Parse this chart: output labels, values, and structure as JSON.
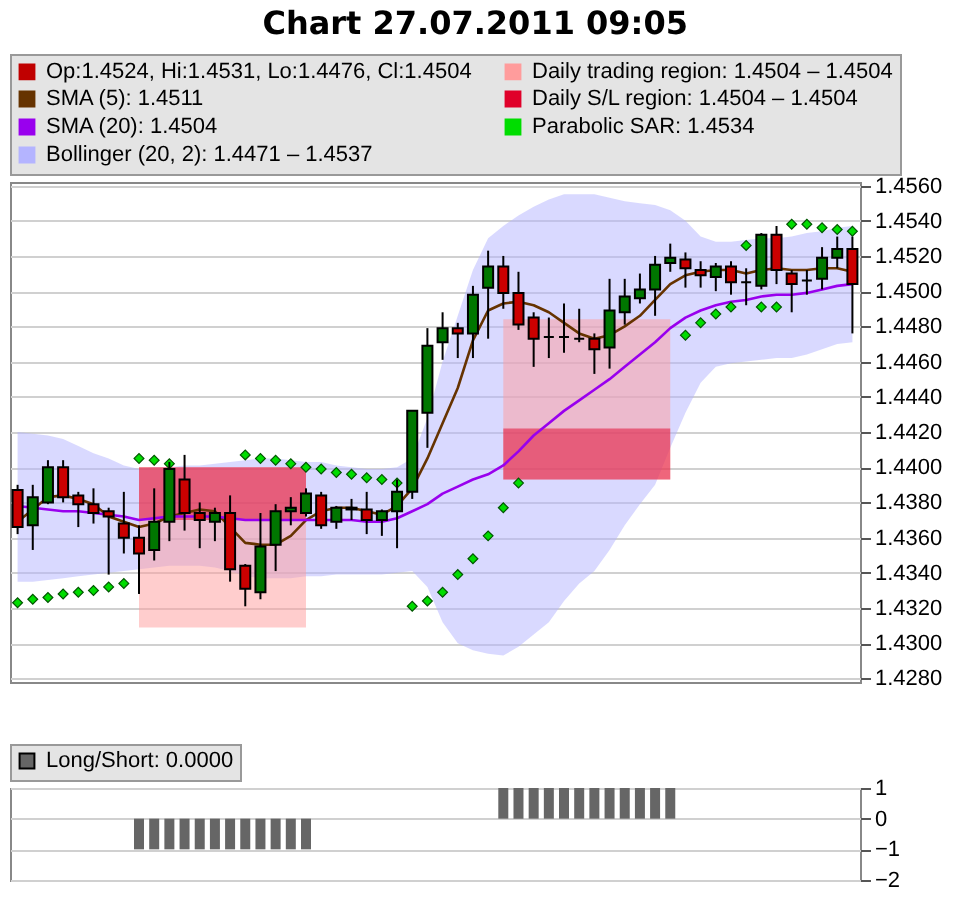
{
  "chart_data": [
    {
      "type": "candlestick",
      "title": "Chart 27.07.2011 09:05",
      "categories": [
        null,
        null,
        null,
        null,
        null,
        null,
        null,
        null,
        null,
        null,
        null,
        null,
        null,
        null,
        null,
        null,
        null,
        null,
        null,
        null,
        null,
        null,
        null,
        null,
        null,
        null,
        null,
        null,
        null,
        null,
        null,
        null,
        null,
        null,
        null,
        null,
        null,
        null,
        null,
        null,
        null,
        null,
        null,
        null,
        null,
        null,
        null,
        null,
        null,
        null,
        null,
        null,
        null,
        null,
        null,
        null
      ],
      "ylim": [
        1.4278,
        1.4562
      ],
      "yticks": [
        {
          "value": 1.428,
          "label": "1.4280"
        },
        {
          "value": 1.43,
          "label": "1.4300"
        },
        {
          "value": 1.432,
          "label": "1.4320"
        },
        {
          "value": 1.434,
          "label": "1.4340"
        },
        {
          "value": 1.436,
          "label": "1.4360"
        },
        {
          "value": 1.438,
          "label": "1.4380"
        },
        {
          "value": 1.44,
          "label": "1.4400"
        },
        {
          "value": 1.442,
          "label": "1.4420"
        },
        {
          "value": 1.444,
          "label": "1.4440"
        },
        {
          "value": 1.446,
          "label": "1.4460"
        },
        {
          "value": 1.448,
          "label": "1.4480"
        },
        {
          "value": 1.45,
          "label": "1.4500"
        },
        {
          "value": 1.452,
          "label": "1.4520"
        },
        {
          "value": 1.454,
          "label": "1.4540"
        },
        {
          "value": 1.456,
          "label": "1.4560"
        }
      ],
      "grid": "y",
      "legend": "top",
      "tick_labels": "y",
      "series": [
        {
          "type": "candlestick",
          "name": "Op:1.4524, Hi:1.4531, Lo:1.4476, Cl:1.4504",
          "color": "#c00000",
          "colors": [
            "#cc0000",
            "#007700",
            "#007700",
            "#cc0000",
            "#cc0000",
            "#cc0000",
            "#cc0000",
            "#cc0000",
            "#cc0000",
            "#007700",
            "#007700",
            "#cc0000",
            "#cc0000",
            "#007700",
            "#cc0000",
            "#cc0000",
            "#007700",
            "#007700",
            "#007700",
            "#007700",
            "#cc0000",
            "#007700",
            "#cc0000",
            "#cc0000",
            "#007700",
            "#007700",
            "#007700",
            "#007700",
            "#007700",
            "#cc0000",
            "#007700",
            "#007700",
            "#cc0000",
            "#cc0000",
            "#cc0000",
            "#000000",
            "#000000",
            "#000000",
            "#cc0000",
            "#007700",
            "#007700",
            "#007700",
            "#007700",
            "#007700",
            "#cc0000",
            "#cc0000",
            "#007700",
            "#cc0000",
            "#000000",
            "#007700",
            "#cc0000",
            "#cc0000",
            "#000000",
            "#007700",
            "#007700",
            "#cc0000"
          ],
          "ohlc": [
            [
              1.4387,
              1.439,
              1.4362,
              1.4366
            ],
            [
              1.4367,
              1.439,
              1.4353,
              1.4383
            ],
            [
              1.438,
              1.4404,
              1.4379,
              1.44
            ],
            [
              1.44,
              1.4404,
              1.438,
              1.4383
            ],
            [
              1.4384,
              1.4386,
              1.4366,
              1.4379
            ],
            [
              1.4379,
              1.4388,
              1.4368,
              1.4374
            ],
            [
              1.4375,
              1.4377,
              1.4339,
              1.4372
            ],
            [
              1.4368,
              1.4386,
              1.4351,
              1.436
            ],
            [
              1.436,
              1.4367,
              1.4328,
              1.4351
            ],
            [
              1.4353,
              1.4388,
              1.4347,
              1.4369
            ],
            [
              1.4369,
              1.4403,
              1.4358,
              1.4399
            ],
            [
              1.4393,
              1.4407,
              1.4364,
              1.4374
            ],
            [
              1.4374,
              1.438,
              1.4354,
              1.437
            ],
            [
              1.4369,
              1.4377,
              1.4358,
              1.4374
            ],
            [
              1.4374,
              1.4384,
              1.4335,
              1.4342
            ],
            [
              1.4344,
              1.4345,
              1.4321,
              1.4331
            ],
            [
              1.4329,
              1.4374,
              1.4325,
              1.4355
            ],
            [
              1.4356,
              1.4379,
              1.4341,
              1.4375
            ],
            [
              1.4375,
              1.4383,
              1.4367,
              1.4377
            ],
            [
              1.4374,
              1.4388,
              1.4372,
              1.4385
            ],
            [
              1.4384,
              1.4386,
              1.4365,
              1.4367
            ],
            [
              1.4369,
              1.4378,
              1.4365,
              1.4377
            ],
            [
              1.4377,
              1.4382,
              1.437,
              1.4376
            ],
            [
              1.4376,
              1.4386,
              1.4362,
              1.437
            ],
            [
              1.437,
              1.4376,
              1.4361,
              1.4375
            ],
            [
              1.4375,
              1.4393,
              1.4354,
              1.4386
            ],
            [
              1.4386,
              1.4432,
              1.4382,
              1.4432
            ],
            [
              1.4431,
              1.4479,
              1.4411,
              1.4469
            ],
            [
              1.4471,
              1.4488,
              1.4461,
              1.4479
            ],
            [
              1.4479,
              1.4482,
              1.4462,
              1.4476
            ],
            [
              1.4476,
              1.4503,
              1.4462,
              1.4498
            ],
            [
              1.4502,
              1.4523,
              1.4473,
              1.4514
            ],
            [
              1.4514,
              1.452,
              1.449,
              1.4499
            ],
            [
              1.4499,
              1.4511,
              1.4478,
              1.4481
            ],
            [
              1.4485,
              1.4488,
              1.4457,
              1.4473
            ],
            [
              1.4474,
              1.4485,
              1.4462,
              1.4474
            ],
            [
              1.4474,
              1.4493,
              1.4465,
              1.4474
            ],
            [
              1.4473,
              1.449,
              1.4471,
              1.4473
            ],
            [
              1.4473,
              1.4476,
              1.4453,
              1.4467
            ],
            [
              1.4468,
              1.4507,
              1.4456,
              1.4489
            ],
            [
              1.4488,
              1.4507,
              1.4481,
              1.4497
            ],
            [
              1.4496,
              1.451,
              1.4493,
              1.4501
            ],
            [
              1.4501,
              1.452,
              1.4486,
              1.4515
            ],
            [
              1.4516,
              1.4527,
              1.4511,
              1.4519
            ],
            [
              1.4518,
              1.4522,
              1.4502,
              1.4513
            ],
            [
              1.4512,
              1.4517,
              1.4502,
              1.4509
            ],
            [
              1.4508,
              1.4516,
              1.45,
              1.4514
            ],
            [
              1.4514,
              1.4517,
              1.4498,
              1.4505
            ],
            [
              1.4505,
              1.4513,
              1.4492,
              1.4505
            ],
            [
              1.4503,
              1.4533,
              1.4501,
              1.4532
            ],
            [
              1.4532,
              1.4537,
              1.4504,
              1.4512
            ],
            [
              1.451,
              1.4512,
              1.4488,
              1.4504
            ],
            [
              1.4506,
              1.4512,
              1.4498,
              1.4506
            ],
            [
              1.4507,
              1.4525,
              1.4501,
              1.4519
            ],
            [
              1.4519,
              1.4531,
              1.4513,
              1.4524
            ],
            [
              1.4524,
              1.4531,
              1.4476,
              1.4504
            ]
          ]
        },
        {
          "type": "line",
          "name": "SMA (5): 1.4511",
          "color": "#663300",
          "values": [
            1.4369,
            1.4376,
            1.4383,
            1.4384,
            1.4382,
            1.4379,
            1.4372,
            1.4369,
            1.4366,
            1.4368,
            1.4372,
            1.4374,
            1.4376,
            1.4375,
            1.4366,
            1.4357,
            1.4356,
            1.4356,
            1.4361,
            1.437,
            1.4375,
            1.4377,
            1.4377,
            1.4375,
            1.4373,
            1.4378,
            1.4388,
            1.4405,
            1.4425,
            1.4445,
            1.4472,
            1.4489,
            1.4493,
            1.4494,
            1.4492,
            1.4488,
            1.4482,
            1.4476,
            1.4473,
            1.4475,
            1.448,
            1.4486,
            1.4495,
            1.4504,
            1.4509,
            1.4511,
            1.4512,
            1.4512,
            1.451,
            1.4512,
            1.4513,
            1.4512,
            1.4512,
            1.4513,
            1.4513,
            1.4511
          ]
        },
        {
          "type": "line",
          "name": "SMA (20): 1.4504",
          "color": "#9900ee",
          "values": [
            1.4378,
            1.4377,
            1.4376,
            1.4375,
            1.4375,
            1.4374,
            1.4373,
            1.4372,
            1.437,
            1.4371,
            1.4372,
            1.4372,
            1.4372,
            1.4372,
            1.4371,
            1.437,
            1.437,
            1.437,
            1.437,
            1.437,
            1.437,
            1.437,
            1.437,
            1.4369,
            1.4369,
            1.4371,
            1.4375,
            1.4379,
            1.4385,
            1.4389,
            1.4393,
            1.4396,
            1.4401,
            1.4409,
            1.4418,
            1.4425,
            1.4432,
            1.4438,
            1.4444,
            1.445,
            1.4457,
            1.4464,
            1.4471,
            1.4479,
            1.4485,
            1.4489,
            1.4492,
            1.4494,
            1.4495,
            1.4497,
            1.4498,
            1.4498,
            1.4499,
            1.4501,
            1.4503,
            1.4504
          ]
        },
        {
          "type": "area",
          "name": "Bollinger (20, 2): 1.4471 – 1.4537",
          "color": "#b4b4ff",
          "values": [
            null,
            null,
            null,
            null,
            null,
            null,
            null,
            null,
            null,
            null,
            null,
            null,
            null,
            null,
            null,
            null,
            null,
            null,
            null,
            null,
            null,
            null,
            null,
            null,
            null,
            null,
            null,
            null,
            null,
            null,
            null,
            null,
            null,
            null,
            null,
            null,
            null,
            null,
            null,
            null,
            null,
            null,
            null,
            null,
            null,
            null,
            null,
            null,
            null,
            null,
            null,
            null,
            null,
            null,
            null,
            null
          ],
          "upper": [
            1.442,
            1.4419,
            1.4418,
            1.4416,
            1.4412,
            1.4408,
            1.4405,
            1.4401,
            1.4399,
            1.44,
            1.44,
            1.4401,
            1.4401,
            1.4402,
            1.4403,
            1.4404,
            1.4405,
            1.4405,
            1.4404,
            1.4403,
            1.4403,
            1.4401,
            1.44,
            1.4399,
            1.4399,
            1.44,
            1.4405,
            1.4428,
            1.446,
            1.4486,
            1.4512,
            1.453,
            1.4537,
            1.4543,
            1.4548,
            1.4552,
            1.4555,
            1.4555,
            1.4555,
            1.4553,
            1.4551,
            1.455,
            1.4549,
            1.4546,
            1.454,
            1.4531,
            1.4528,
            1.4528,
            1.4529,
            1.453,
            1.453,
            1.4531,
            1.4533,
            1.4534,
            1.4536,
            1.4537
          ],
          "lower": [
            1.4335,
            1.4335,
            1.4336,
            1.4337,
            1.4338,
            1.4339,
            1.434,
            1.4341,
            1.4342,
            1.4343,
            1.4344,
            1.4344,
            1.4344,
            1.4343,
            1.4341,
            1.4338,
            1.4337,
            1.4337,
            1.4337,
            1.4338,
            1.4338,
            1.4339,
            1.4339,
            1.4339,
            1.4339,
            1.434,
            1.4341,
            1.4332,
            1.4312,
            1.43,
            1.4296,
            1.4294,
            1.4293,
            1.4298,
            1.4305,
            1.4312,
            1.4324,
            1.4334,
            1.4341,
            1.4353,
            1.4367,
            1.4379,
            1.439,
            1.4411,
            1.4431,
            1.4448,
            1.4457,
            1.4459,
            1.446,
            1.4461,
            1.4462,
            1.4462,
            1.4464,
            1.4467,
            1.447,
            1.4471
          ]
        },
        {
          "type": "area",
          "name": "Daily trading region: 1.4504 – 1.4504",
          "color": "#ff9c9c",
          "values": [
            null,
            null,
            null,
            null,
            null,
            null,
            null,
            null,
            null,
            null,
            null,
            null,
            null,
            null,
            null,
            null,
            null,
            null,
            null,
            null,
            null,
            null,
            null,
            null,
            null,
            null,
            null,
            null,
            null,
            null,
            null,
            null,
            null,
            null,
            null,
            null,
            null,
            null,
            null,
            null,
            null,
            null,
            null,
            null,
            null,
            null,
            null,
            null,
            null,
            null,
            null,
            null,
            null,
            null,
            null,
            null
          ],
          "upper": [
            null,
            null,
            null,
            null,
            null,
            null,
            null,
            null,
            1.44,
            1.44,
            1.44,
            1.44,
            1.44,
            1.44,
            1.44,
            1.44,
            1.44,
            1.44,
            1.44,
            1.44,
            null,
            null,
            null,
            null,
            null,
            null,
            null,
            null,
            null,
            null,
            null,
            null,
            1.4484,
            1.4484,
            1.4484,
            1.4484,
            1.4484,
            1.4484,
            1.4484,
            1.4484,
            1.4484,
            1.4484,
            1.4484,
            1.4484,
            null,
            null,
            null,
            null,
            null,
            null,
            null,
            null,
            null,
            null,
            null,
            null
          ],
          "lower": [
            null,
            null,
            null,
            null,
            null,
            null,
            null,
            null,
            1.4309,
            1.4309,
            1.4309,
            1.4309,
            1.4309,
            1.4309,
            1.4309,
            1.4309,
            1.4309,
            1.4309,
            1.4309,
            1.4309,
            null,
            null,
            null,
            null,
            null,
            null,
            null,
            null,
            null,
            null,
            null,
            null,
            1.4393,
            1.4393,
            1.4393,
            1.4393,
            1.4393,
            1.4393,
            1.4393,
            1.4393,
            1.4393,
            1.4393,
            1.4393,
            1.4393,
            null,
            null,
            null,
            null,
            null,
            null,
            null,
            null,
            null,
            null,
            null,
            null
          ]
        },
        {
          "type": "area",
          "name": "Daily S/L region: 1.4504 – 1.4504",
          "color": "#e0002a",
          "values": [
            null,
            null,
            null,
            null,
            null,
            null,
            null,
            null,
            null,
            null,
            null,
            null,
            null,
            null,
            null,
            null,
            null,
            null,
            null,
            null,
            null,
            null,
            null,
            null,
            null,
            null,
            null,
            null,
            null,
            null,
            null,
            null,
            null,
            null,
            null,
            null,
            null,
            null,
            null,
            null,
            null,
            null,
            null,
            null,
            null,
            null,
            null,
            null,
            null,
            null,
            null,
            null,
            null,
            null,
            null,
            null
          ],
          "upper": [
            null,
            null,
            null,
            null,
            null,
            null,
            null,
            null,
            1.44,
            1.44,
            1.44,
            1.44,
            1.44,
            1.44,
            1.44,
            1.44,
            1.44,
            1.44,
            1.44,
            1.44,
            null,
            null,
            null,
            null,
            null,
            null,
            null,
            null,
            null,
            null,
            null,
            null,
            1.4422,
            1.4422,
            1.4422,
            1.4422,
            1.4422,
            1.4422,
            1.4422,
            1.4422,
            1.4422,
            1.4422,
            1.4422,
            1.4422,
            null,
            null,
            null,
            null,
            null,
            null,
            null,
            null,
            null,
            null,
            null,
            null
          ],
          "lower": [
            null,
            null,
            null,
            null,
            null,
            null,
            null,
            null,
            1.437,
            1.437,
            1.437,
            1.437,
            1.437,
            1.437,
            1.437,
            1.437,
            1.437,
            1.437,
            1.437,
            1.437,
            null,
            null,
            null,
            null,
            null,
            null,
            null,
            null,
            null,
            null,
            null,
            null,
            1.4393,
            1.4393,
            1.4393,
            1.4393,
            1.4393,
            1.4393,
            1.4393,
            1.4393,
            1.4393,
            1.4393,
            1.4393,
            1.4393,
            null,
            null,
            null,
            null,
            null,
            null,
            null,
            null,
            null,
            null,
            null,
            null
          ]
        },
        {
          "type": "scatter",
          "name": "Parabolic SAR: 1.4534",
          "color": "#00dd00",
          "marker": "diamond",
          "values": [
            1.4323,
            1.4325,
            1.4326,
            1.4328,
            1.4329,
            1.433,
            1.4332,
            1.4334,
            1.4405,
            1.4404,
            1.4402,
            null,
            null,
            null,
            null,
            1.4407,
            1.4405,
            1.4404,
            1.4402,
            1.44,
            1.4399,
            1.4397,
            1.4396,
            1.4394,
            1.4393,
            1.4391,
            1.4321,
            1.4324,
            1.4329,
            1.4339,
            1.4348,
            1.4361,
            1.4377,
            1.4391,
            null,
            null,
            null,
            null,
            null,
            null,
            null,
            null,
            null,
            null,
            1.4475,
            1.4482,
            1.4487,
            1.4491,
            1.4526,
            1.4491,
            1.4491,
            1.4538,
            1.4538,
            1.4536,
            1.4535,
            1.4534
          ]
        }
      ]
    },
    {
      "type": "bar",
      "categories": [
        null,
        null,
        null,
        null,
        null,
        null,
        null,
        null,
        null,
        null,
        null,
        null,
        null,
        null,
        null,
        null,
        null,
        null,
        null,
        null,
        null,
        null,
        null,
        null,
        null,
        null,
        null,
        null,
        null,
        null,
        null,
        null,
        null,
        null,
        null,
        null,
        null,
        null,
        null,
        null,
        null,
        null,
        null,
        null,
        null,
        null,
        null,
        null,
        null,
        null,
        null,
        null,
        null,
        null,
        null,
        null
      ],
      "ylim": [
        -2,
        1
      ],
      "yticks": [
        -2,
        -1,
        0,
        1
      ],
      "grid": "y",
      "legend": "top left",
      "tick_labels": "y",
      "series": [
        {
          "name": "Long/Short: 0.0000",
          "color": "#666666",
          "values": [
            0,
            0,
            0,
            0,
            0,
            0,
            0,
            0,
            -1,
            -1,
            -1,
            -1,
            -1,
            -1,
            -1,
            -1,
            -1,
            -1,
            -1,
            -1,
            0,
            0,
            0,
            0,
            0,
            0,
            0,
            0,
            0,
            0,
            0,
            0,
            1,
            1,
            1,
            1,
            1,
            1,
            1,
            1,
            1,
            1,
            1,
            1,
            0,
            0,
            0,
            0,
            0,
            0,
            0,
            0,
            0,
            0,
            0,
            0
          ]
        }
      ]
    }
  ]
}
